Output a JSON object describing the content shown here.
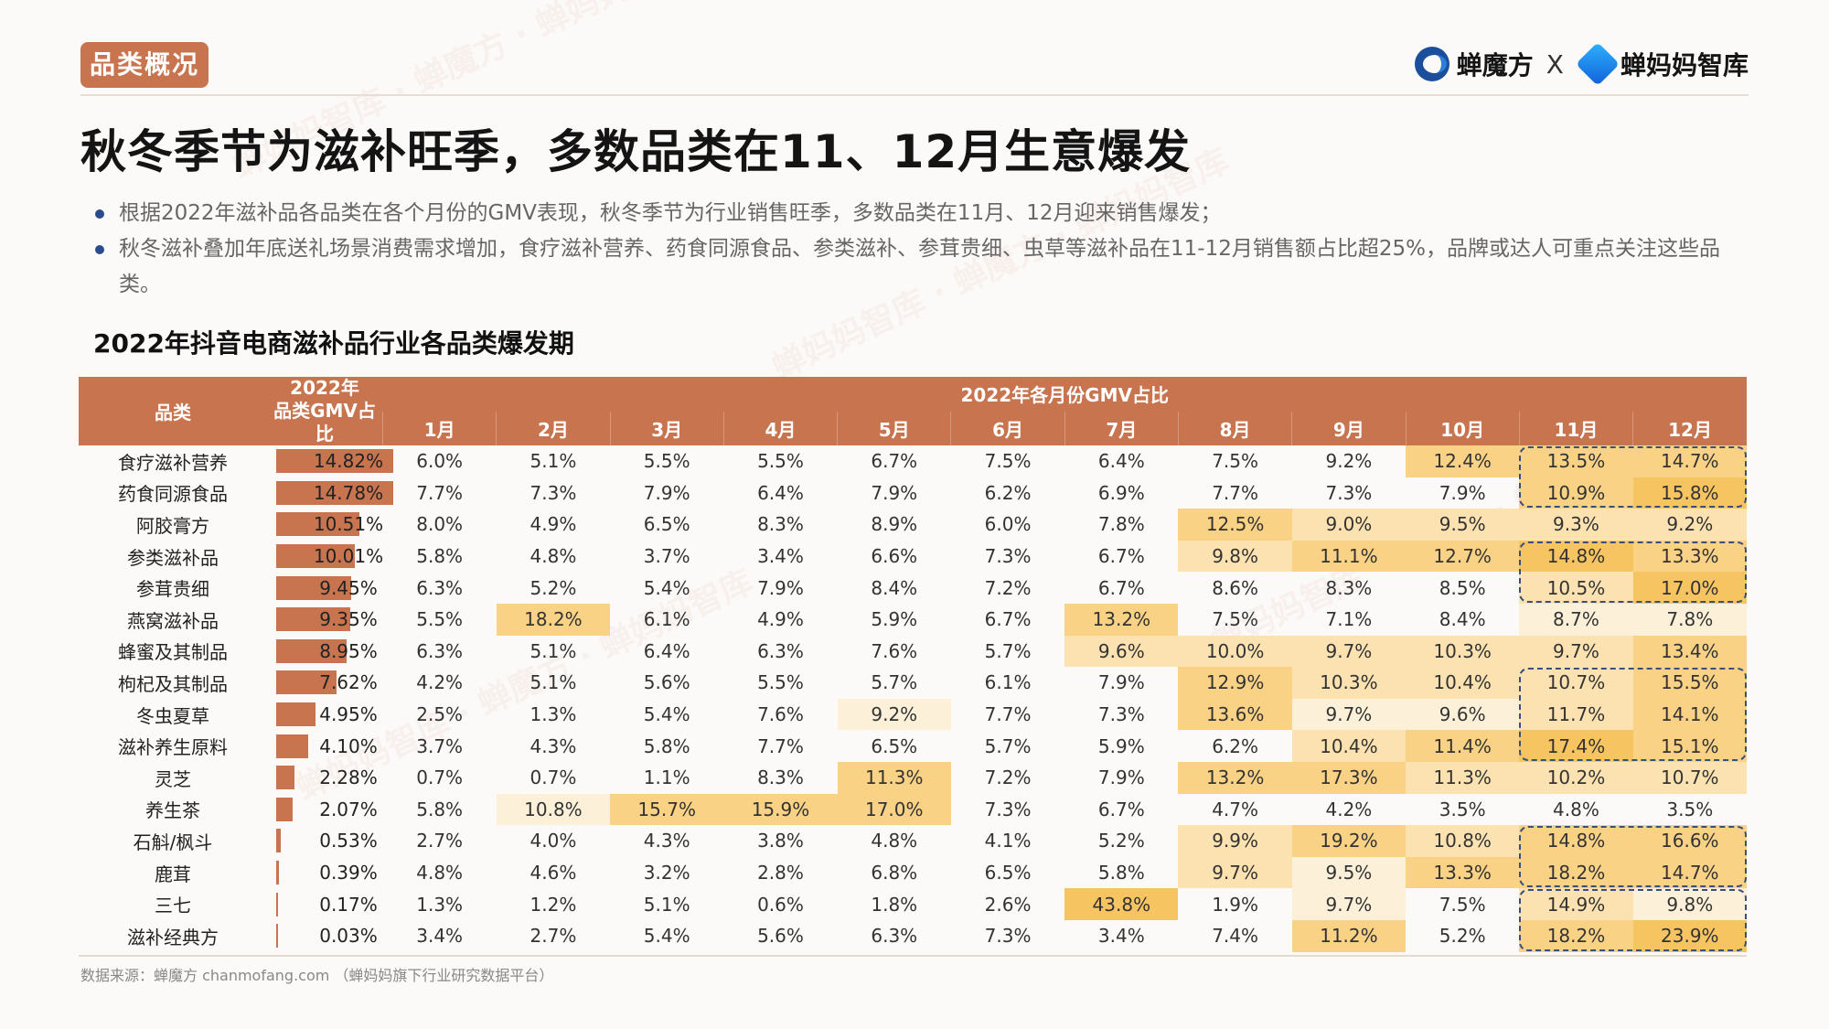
{
  "tag": "品类概况",
  "brand": {
    "left_name": "蝉魔方",
    "x": "X",
    "right_name": "蝉妈妈智库"
  },
  "title": "秋冬季节为滋补旺季，多数品类在11、12月生意爆发",
  "bullets": [
    "根据2022年滋补品各品类在各个月份的GMV表现，秋冬季节为行业销售旺季，多数品类在11月、12月迎来销售爆发；",
    "秋冬滋补叠加年底送礼场景消费需求增加，食疗滋补营养、药食同源食品、参类滋补、参茸贵细、虫草等滋补品在11-12月销售额占比超25%，品牌或达人可重点关注这些品类。"
  ],
  "table_title": "2022年抖音电商滋补品行业各品类爆发期",
  "table": {
    "col_category": "品类",
    "col_share": "2022年品类GMV占比",
    "col_share_line1": "2022年",
    "col_share_line2": "品类GMV占比",
    "col_months_group": "2022年各月份GMV占比",
    "months": [
      "1月",
      "2月",
      "3月",
      "4月",
      "5月",
      "6月",
      "7月",
      "8月",
      "9月",
      "10月",
      "11月",
      "12月"
    ],
    "rows": [
      {
        "cat": "食疗滋补营养",
        "share": "14.82%",
        "share_value": 14.82,
        "m": [
          "6.0%",
          "5.1%",
          "5.5%",
          "5.5%",
          "6.7%",
          "7.5%",
          "6.4%",
          "7.5%",
          "9.2%",
          "12.4%",
          "13.5%",
          "14.7%"
        ],
        "h": [
          0,
          0,
          0,
          0,
          0,
          0,
          0,
          0,
          0,
          3,
          3,
          3
        ]
      },
      {
        "cat": "药食同源食品",
        "share": "14.78%",
        "share_value": 14.78,
        "m": [
          "7.7%",
          "7.3%",
          "7.9%",
          "6.4%",
          "7.9%",
          "6.2%",
          "6.9%",
          "7.7%",
          "7.3%",
          "7.9%",
          "10.9%",
          "15.8%"
        ],
        "h": [
          0,
          0,
          0,
          0,
          0,
          0,
          0,
          0,
          0,
          0,
          3,
          4
        ]
      },
      {
        "cat": "阿胶膏方",
        "share": "10.51%",
        "share_value": 10.51,
        "m": [
          "8.0%",
          "4.9%",
          "6.5%",
          "8.3%",
          "8.9%",
          "6.0%",
          "7.8%",
          "12.5%",
          "9.0%",
          "9.5%",
          "9.3%",
          "9.2%"
        ],
        "h": [
          0,
          0,
          0,
          0,
          0,
          0,
          0,
          3,
          2,
          2,
          2,
          2
        ]
      },
      {
        "cat": "参类滋补品",
        "share": "10.01%",
        "share_value": 10.01,
        "m": [
          "5.8%",
          "4.8%",
          "3.7%",
          "3.4%",
          "6.6%",
          "7.3%",
          "6.7%",
          "9.8%",
          "11.1%",
          "12.7%",
          "14.8%",
          "13.3%"
        ],
        "h": [
          0,
          0,
          0,
          0,
          0,
          0,
          0,
          2,
          3,
          3,
          4,
          3
        ]
      },
      {
        "cat": "参茸贵细",
        "share": "9.45%",
        "share_value": 9.45,
        "m": [
          "6.3%",
          "5.2%",
          "5.4%",
          "7.9%",
          "8.4%",
          "7.2%",
          "6.7%",
          "8.6%",
          "8.3%",
          "8.5%",
          "10.5%",
          "17.0%"
        ],
        "h": [
          0,
          0,
          0,
          0,
          0,
          0,
          0,
          0,
          0,
          0,
          2,
          4
        ]
      },
      {
        "cat": "燕窝滋补品",
        "share": "9.35%",
        "share_value": 9.35,
        "m": [
          "5.5%",
          "18.2%",
          "6.1%",
          "4.9%",
          "5.9%",
          "6.7%",
          "13.2%",
          "7.5%",
          "7.1%",
          "8.4%",
          "8.7%",
          "7.8%"
        ],
        "h": [
          0,
          3,
          0,
          0,
          0,
          0,
          3,
          0,
          0,
          0,
          1,
          1
        ]
      },
      {
        "cat": "蜂蜜及其制品",
        "share": "8.95%",
        "share_value": 8.95,
        "m": [
          "6.3%",
          "5.1%",
          "6.4%",
          "6.3%",
          "7.6%",
          "5.7%",
          "9.6%",
          "10.0%",
          "9.7%",
          "10.3%",
          "9.7%",
          "13.4%"
        ],
        "h": [
          0,
          0,
          0,
          0,
          0,
          0,
          2,
          2,
          2,
          2,
          2,
          3
        ]
      },
      {
        "cat": "枸杞及其制品",
        "share": "7.62%",
        "share_value": 7.62,
        "m": [
          "4.2%",
          "5.1%",
          "5.6%",
          "5.5%",
          "5.7%",
          "6.1%",
          "7.9%",
          "12.9%",
          "10.3%",
          "10.4%",
          "10.7%",
          "15.5%"
        ],
        "h": [
          0,
          0,
          0,
          0,
          0,
          0,
          0,
          3,
          2,
          2,
          2,
          3
        ]
      },
      {
        "cat": "冬虫夏草",
        "share": "4.95%",
        "share_value": 4.95,
        "m": [
          "2.5%",
          "1.3%",
          "5.4%",
          "7.6%",
          "9.2%",
          "7.7%",
          "7.3%",
          "13.6%",
          "9.7%",
          "9.6%",
          "11.7%",
          "14.1%"
        ],
        "h": [
          0,
          0,
          0,
          0,
          1,
          0,
          0,
          3,
          1,
          1,
          2,
          3
        ]
      },
      {
        "cat": "滋补养生原料",
        "share": "4.10%",
        "share_value": 4.1,
        "m": [
          "3.7%",
          "4.3%",
          "5.8%",
          "7.7%",
          "6.5%",
          "5.7%",
          "5.9%",
          "6.2%",
          "10.4%",
          "11.4%",
          "17.4%",
          "15.1%"
        ],
        "h": [
          0,
          0,
          0,
          0,
          0,
          0,
          0,
          0,
          2,
          3,
          4,
          3
        ]
      },
      {
        "cat": "灵芝",
        "share": "2.28%",
        "share_value": 2.28,
        "m": [
          "0.7%",
          "0.7%",
          "1.1%",
          "8.3%",
          "11.3%",
          "7.2%",
          "7.9%",
          "13.2%",
          "17.3%",
          "11.3%",
          "10.2%",
          "10.7%"
        ],
        "h": [
          0,
          0,
          0,
          0,
          3,
          0,
          0,
          3,
          3,
          2,
          2,
          2
        ]
      },
      {
        "cat": "养生茶",
        "share": "2.07%",
        "share_value": 2.07,
        "m": [
          "5.8%",
          "10.8%",
          "15.7%",
          "15.9%",
          "17.0%",
          "7.3%",
          "6.7%",
          "4.7%",
          "4.2%",
          "3.5%",
          "4.8%",
          "3.5%"
        ],
        "h": [
          0,
          1,
          3,
          3,
          3,
          0,
          0,
          0,
          0,
          0,
          0,
          0
        ]
      },
      {
        "cat": "石斛/枫斗",
        "share": "0.53%",
        "share_value": 0.53,
        "m": [
          "2.7%",
          "4.0%",
          "4.3%",
          "3.8%",
          "4.8%",
          "4.1%",
          "5.2%",
          "9.9%",
          "19.2%",
          "10.8%",
          "14.8%",
          "16.6%"
        ],
        "h": [
          0,
          0,
          0,
          0,
          0,
          0,
          0,
          2,
          3,
          2,
          3,
          3
        ]
      },
      {
        "cat": "鹿茸",
        "share": "0.39%",
        "share_value": 0.39,
        "m": [
          "4.8%",
          "4.6%",
          "3.2%",
          "2.8%",
          "6.8%",
          "6.5%",
          "5.8%",
          "9.7%",
          "9.5%",
          "13.3%",
          "18.2%",
          "14.7%"
        ],
        "h": [
          0,
          0,
          0,
          0,
          0,
          0,
          0,
          2,
          1,
          3,
          3,
          3
        ]
      },
      {
        "cat": "三七",
        "share": "0.17%",
        "share_value": 0.17,
        "m": [
          "1.3%",
          "1.2%",
          "5.1%",
          "0.6%",
          "1.8%",
          "2.6%",
          "43.8%",
          "1.9%",
          "9.7%",
          "7.5%",
          "14.9%",
          "9.8%"
        ],
        "h": [
          0,
          0,
          0,
          0,
          0,
          0,
          4,
          0,
          1,
          0,
          2,
          1
        ]
      },
      {
        "cat": "滋补经典方",
        "share": "0.03%",
        "share_value": 0.03,
        "m": [
          "3.4%",
          "2.7%",
          "5.4%",
          "5.6%",
          "6.3%",
          "7.3%",
          "3.4%",
          "7.4%",
          "11.2%",
          "5.2%",
          "18.2%",
          "23.9%"
        ],
        "h": [
          0,
          0,
          0,
          0,
          0,
          0,
          0,
          0,
          3,
          0,
          3,
          4
        ]
      }
    ]
  },
  "source": "数据来源：蝉魔方 chanmofang.com （蝉妈妈旗下行业研究数据平台）",
  "colors": {
    "accent": "#c8744f",
    "highlight_levels": [
      "#fdf0d8",
      "#fbe2b0",
      "#f9d285",
      "#f7c462"
    ],
    "dash": "#3a4e7a"
  }
}
